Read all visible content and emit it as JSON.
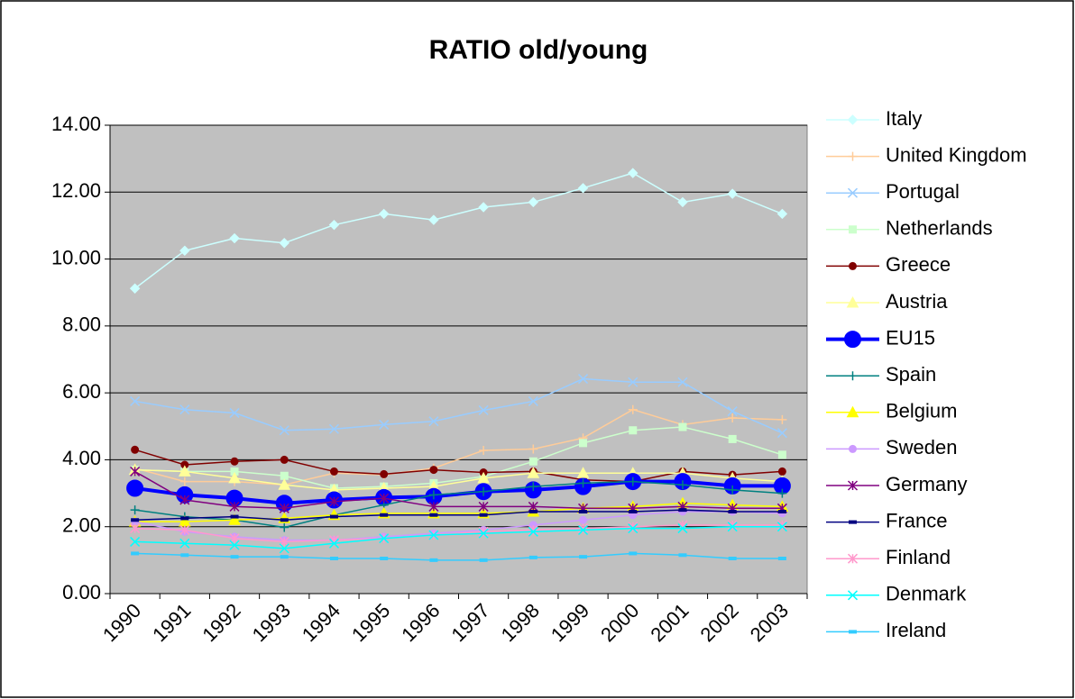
{
  "chart_data": {
    "type": "line",
    "title": "RATIO old/young",
    "categories": [
      "1990",
      "1991",
      "1992",
      "1993",
      "1994",
      "1995",
      "1996",
      "1997",
      "1998",
      "1999",
      "2000",
      "2001",
      "2002",
      "2003"
    ],
    "ylim": [
      0,
      14
    ],
    "yticks": [
      {
        "value": 0,
        "label": "0.00"
      },
      {
        "value": 2,
        "label": "2.00"
      },
      {
        "value": 4,
        "label": "4.00"
      },
      {
        "value": 6,
        "label": "6.00"
      },
      {
        "value": 8,
        "label": "8.00"
      },
      {
        "value": 10,
        "label": "10.00"
      },
      {
        "value": 12,
        "label": "12.00"
      },
      {
        "value": 14,
        "label": "14.00"
      }
    ],
    "grid": true,
    "legend": "right",
    "series": [
      {
        "name": "Italy",
        "color": "#ccffff",
        "marker": "diamond",
        "values": [
          9.12,
          10.25,
          10.62,
          10.48,
          11.02,
          11.35,
          11.17,
          11.55,
          11.7,
          12.12,
          12.57,
          11.7,
          11.95,
          11.35
        ]
      },
      {
        "name": "United Kingdom",
        "color": "#ffcc99",
        "marker": "plus",
        "values": [
          3.75,
          3.35,
          3.35,
          3.25,
          3.6,
          3.55,
          3.75,
          4.28,
          4.32,
          4.65,
          5.5,
          5.05,
          5.25,
          5.2
        ]
      },
      {
        "name": "Portugal",
        "color": "#99ccff",
        "marker": "x",
        "values": [
          5.75,
          5.5,
          5.4,
          4.88,
          4.92,
          5.05,
          5.15,
          5.48,
          5.75,
          6.42,
          6.32,
          6.32,
          5.45,
          4.8
        ]
      },
      {
        "name": "Netherlands",
        "color": "#ccffcc",
        "marker": "square",
        "values": [
          3.7,
          3.65,
          3.65,
          3.52,
          3.15,
          3.2,
          3.3,
          3.5,
          3.95,
          4.5,
          4.88,
          4.98,
          4.62,
          4.15
        ]
      },
      {
        "name": "Greece",
        "color": "#800000",
        "marker": "circle",
        "values": [
          4.3,
          3.85,
          3.95,
          4.0,
          3.65,
          3.57,
          3.7,
          3.62,
          3.65,
          3.4,
          3.35,
          3.65,
          3.55,
          3.65
        ]
      },
      {
        "name": "Austria",
        "color": "#ffff99",
        "marker": "triangle",
        "values": [
          3.7,
          3.65,
          3.45,
          3.25,
          3.1,
          3.15,
          3.2,
          3.45,
          3.6,
          3.6,
          3.6,
          3.6,
          3.45,
          3.35
        ]
      },
      {
        "name": "EU15",
        "color": "#0000ff",
        "marker": "bigcircle",
        "values": [
          3.15,
          2.95,
          2.85,
          2.7,
          2.8,
          2.87,
          2.9,
          3.05,
          3.1,
          3.2,
          3.35,
          3.35,
          3.22,
          3.22
        ]
      },
      {
        "name": "Spain",
        "color": "#008080",
        "marker": "plus",
        "values": [
          2.5,
          2.3,
          2.2,
          1.98,
          2.35,
          2.65,
          2.95,
          3.05,
          3.2,
          3.3,
          3.35,
          3.25,
          3.1,
          3.0
        ]
      },
      {
        "name": "Belgium",
        "color": "#ffff00",
        "marker": "triangle",
        "values": [
          2.15,
          2.15,
          2.2,
          2.25,
          2.35,
          2.4,
          2.4,
          2.4,
          2.45,
          2.55,
          2.6,
          2.7,
          2.65,
          2.6
        ]
      },
      {
        "name": "Sweden",
        "color": "#cc99ff",
        "marker": "circle",
        "values": [
          2.15,
          1.85,
          1.7,
          1.6,
          1.6,
          1.7,
          1.8,
          1.9,
          2.05,
          2.2,
          2.35,
          2.45,
          2.45,
          2.4
        ]
      },
      {
        "name": "Germany",
        "color": "#800080",
        "marker": "star",
        "values": [
          3.65,
          2.8,
          2.6,
          2.55,
          2.75,
          2.85,
          2.6,
          2.6,
          2.6,
          2.55,
          2.55,
          2.6,
          2.55,
          2.55
        ]
      },
      {
        "name": "France",
        "color": "#000080",
        "marker": "dash",
        "values": [
          2.2,
          2.25,
          2.3,
          2.2,
          2.3,
          2.35,
          2.35,
          2.35,
          2.45,
          2.45,
          2.45,
          2.5,
          2.45,
          2.45
        ]
      },
      {
        "name": "Finland",
        "color": "#ff99cc",
        "marker": "star",
        "values": [
          1.95,
          1.9,
          1.65,
          1.55,
          1.6,
          1.65,
          1.75,
          1.85,
          1.9,
          1.95,
          2.0,
          2.05,
          2.05,
          2.05
        ]
      },
      {
        "name": "Denmark",
        "color": "#00ffff",
        "marker": "x",
        "values": [
          1.55,
          1.5,
          1.45,
          1.35,
          1.5,
          1.65,
          1.75,
          1.8,
          1.85,
          1.9,
          1.95,
          1.95,
          2.0,
          2.0
        ]
      },
      {
        "name": "Ireland",
        "color": "#33ccff",
        "marker": "dash",
        "values": [
          1.2,
          1.15,
          1.1,
          1.1,
          1.05,
          1.05,
          1.0,
          1.0,
          1.08,
          1.1,
          1.2,
          1.15,
          1.05,
          1.05
        ]
      }
    ]
  }
}
